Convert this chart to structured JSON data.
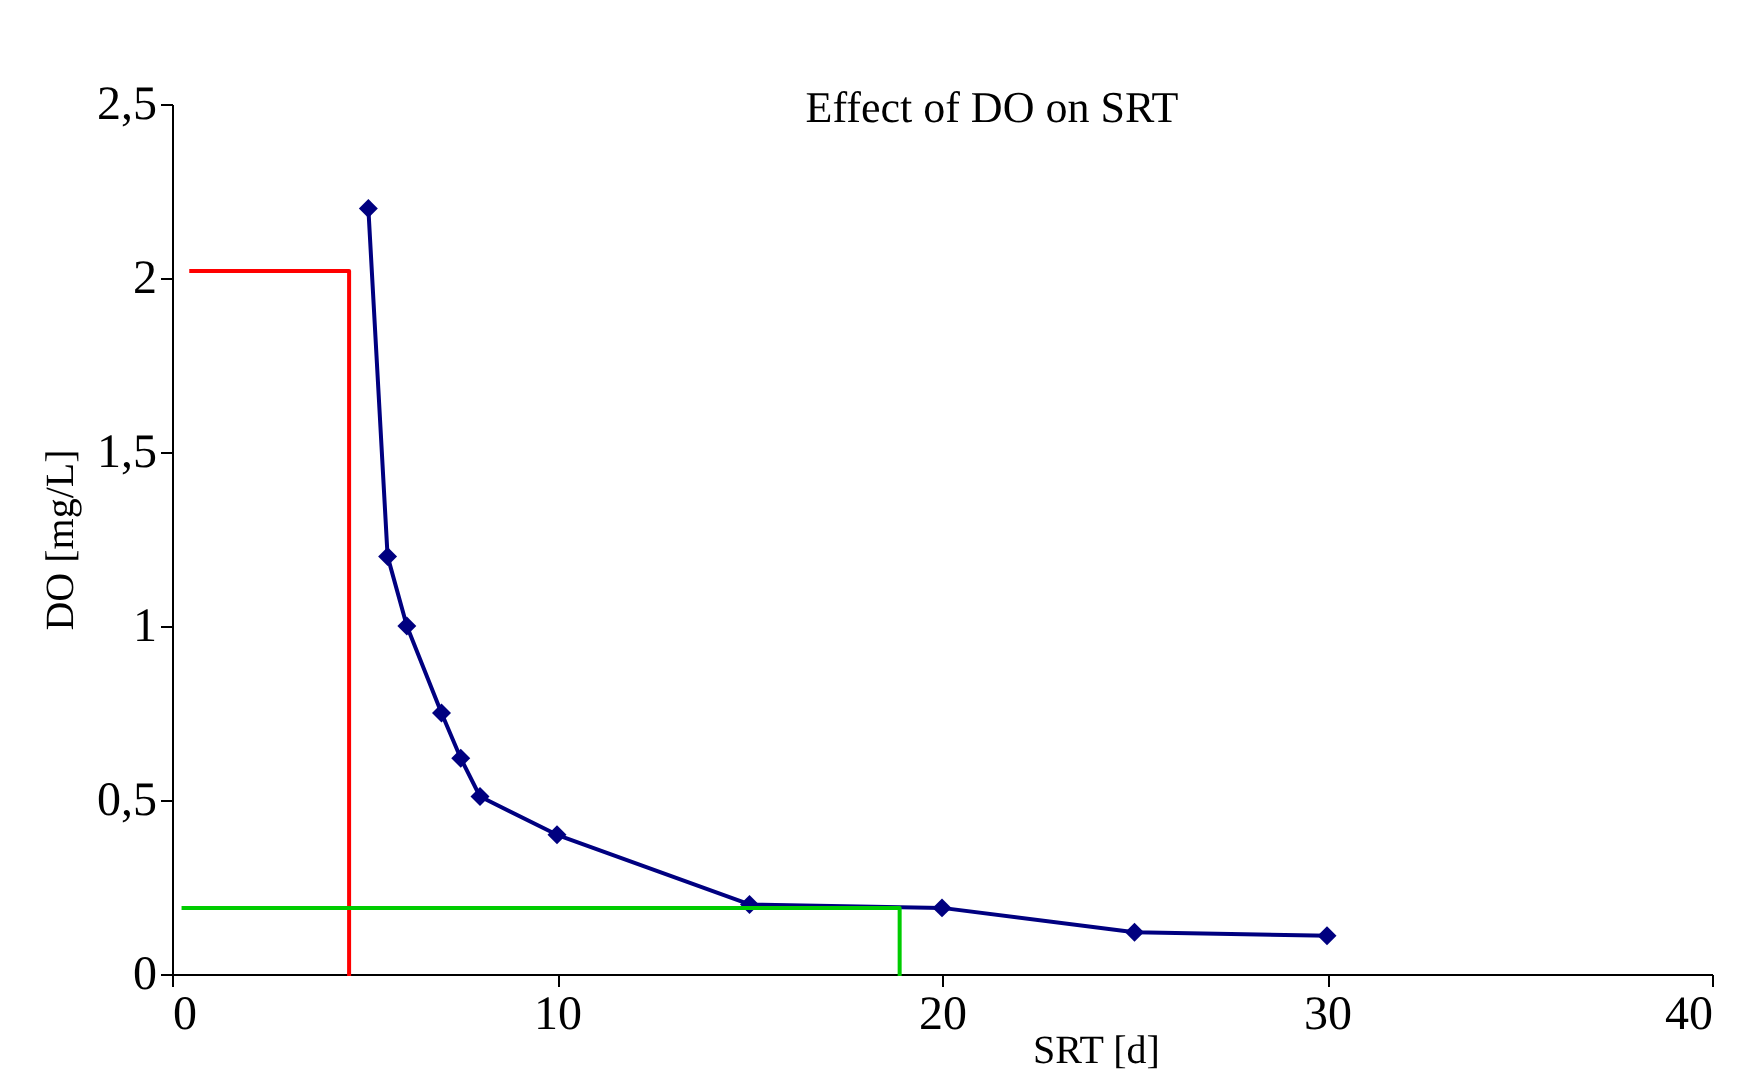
{
  "chart_data": {
    "type": "line",
    "title": "Effect of DO on SRT",
    "xlabel": "SRT [d]",
    "ylabel": "DO [mg/L]",
    "xlim": [
      0,
      40
    ],
    "xticks": [
      0,
      10,
      20,
      30,
      40
    ],
    "ylim": [
      0,
      2.5
    ],
    "yticks": [
      0,
      {
        "value": 0.5,
        "label": "0,5"
      },
      1,
      {
        "value": 1.5,
        "label": "1,5"
      },
      2,
      {
        "value": 2.5,
        "label": "2,5"
      }
    ],
    "grid": false,
    "series": [
      {
        "marker": "diamond",
        "color": "#000080",
        "x": [
          5.1,
          5.6,
          6.1,
          7,
          7.5,
          8,
          10,
          15,
          20,
          25,
          30
        ],
        "values": [
          2.2,
          1.2,
          1.0,
          0.75,
          0.62,
          0.51,
          0.4,
          0.2,
          0.19,
          0.12,
          0.11
        ]
      },
      {
        "marker": "none",
        "color": "#ff0000",
        "x": [
          0.5,
          4.6,
          4.6
        ],
        "values": [
          2.02,
          2.02,
          0
        ]
      },
      {
        "marker": "none",
        "color": "#00cc00",
        "x": [
          0.3,
          18.9,
          18.9
        ],
        "values": [
          0.19,
          0.19,
          0
        ]
      }
    ]
  }
}
